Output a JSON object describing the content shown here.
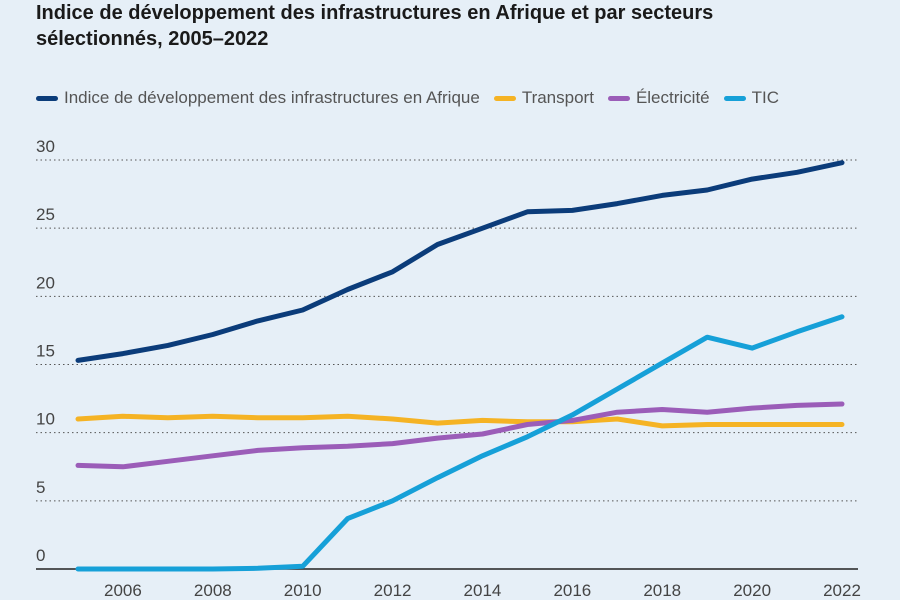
{
  "header": {
    "title_line1": "Indice de développement des infrastructures en Afrique et par secteurs",
    "title_line2": "sélectionnés, 2005–2022"
  },
  "colors": {
    "background": "#e6eff7",
    "grid": "#555555",
    "axis": "#222222",
    "tick_text": "#444444"
  },
  "chart_data": {
    "type": "line",
    "title": "Indice de développement des infrastructures en Afrique et par secteurs sélectionnés, 2005–2022",
    "xlabel": "",
    "ylabel": "",
    "x": [
      2005,
      2006,
      2007,
      2008,
      2009,
      2010,
      2011,
      2012,
      2013,
      2014,
      2015,
      2016,
      2017,
      2018,
      2019,
      2020,
      2021,
      2022
    ],
    "xlim": [
      2005,
      2022
    ],
    "ylim": [
      0,
      30
    ],
    "x_ticks": [
      2006,
      2008,
      2010,
      2012,
      2014,
      2016,
      2018,
      2020,
      2022
    ],
    "y_ticks": [
      0,
      5,
      10,
      15,
      20,
      25,
      30
    ],
    "grid": "horizontal dotted",
    "legend_position": "top",
    "series": [
      {
        "name": "Indice de développement des infrastructures en Afrique",
        "color": "#0b3c7a",
        "values": [
          15.3,
          15.8,
          16.4,
          17.2,
          18.2,
          19.0,
          20.5,
          21.8,
          23.8,
          25.0,
          26.2,
          26.3,
          26.8,
          27.4,
          27.8,
          28.6,
          29.1,
          29.8
        ]
      },
      {
        "name": "Transport",
        "color": "#f5b324",
        "values": [
          11.0,
          11.2,
          11.1,
          11.2,
          11.1,
          11.1,
          11.2,
          11.0,
          10.7,
          10.9,
          10.8,
          10.8,
          11.0,
          10.5,
          10.6,
          10.6,
          10.6,
          10.6
        ]
      },
      {
        "name": "Électricité",
        "color": "#9b5db8",
        "values": [
          7.6,
          7.5,
          7.9,
          8.3,
          8.7,
          8.9,
          9.0,
          9.2,
          9.6,
          9.9,
          10.6,
          10.9,
          11.5,
          11.7,
          11.5,
          11.8,
          12.0,
          12.1
        ]
      },
      {
        "name": "TIC",
        "color": "#16a0d8",
        "values": [
          0.0,
          0.0,
          0.0,
          0.0,
          0.05,
          0.2,
          3.7,
          5.0,
          6.7,
          8.3,
          9.7,
          11.3,
          13.2,
          15.1,
          17.0,
          16.2,
          17.4,
          18.5
        ]
      }
    ]
  }
}
